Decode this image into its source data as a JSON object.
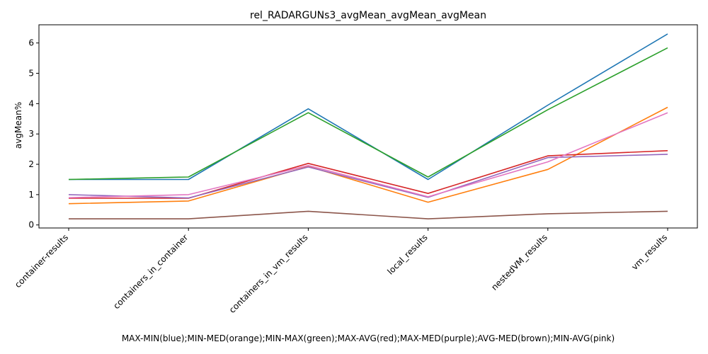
{
  "chart_data": {
    "type": "line",
    "title": "rel_RADARGUNs3_avgMean_avgMean_avgMean",
    "ylabel": "avgMean%",
    "xlabel": "MAX-MIN(blue);MIN-MED(orange);MIN-MAX(green);MAX-AVG(red);MAX-MED(purple);AVG-MED(brown);MIN-AVG(pink)",
    "categories": [
      "container-results",
      "containers_in_container",
      "containers_in_vm_results",
      "local_results",
      "nestedVM_results",
      "vm_results"
    ],
    "ylim": [
      -0.1,
      6.6
    ],
    "yticks": [
      "0",
      "1",
      "2",
      "3",
      "4",
      "5",
      "6"
    ],
    "grid": false,
    "series": [
      {
        "color": "#1f77b4",
        "values": [
          1.5,
          1.5,
          3.83,
          1.5,
          3.95,
          6.3
        ]
      },
      {
        "color": "#ff7f0e",
        "values": [
          0.7,
          0.79,
          1.93,
          0.75,
          1.83,
          3.88
        ]
      },
      {
        "color": "#2ca02c",
        "values": [
          1.5,
          1.58,
          3.7,
          1.58,
          3.8,
          5.84
        ]
      },
      {
        "color": "#d62728",
        "values": [
          0.88,
          0.88,
          2.03,
          1.04,
          2.28,
          2.45
        ]
      },
      {
        "color": "#9467bd",
        "values": [
          1.0,
          0.89,
          1.91,
          0.91,
          2.22,
          2.33
        ]
      },
      {
        "color": "#8c564b",
        "values": [
          0.2,
          0.2,
          0.45,
          0.2,
          0.37,
          0.45
        ]
      },
      {
        "color": "#e377c2",
        "values": [
          0.9,
          1.0,
          1.96,
          0.93,
          2.08,
          3.7
        ]
      }
    ]
  }
}
